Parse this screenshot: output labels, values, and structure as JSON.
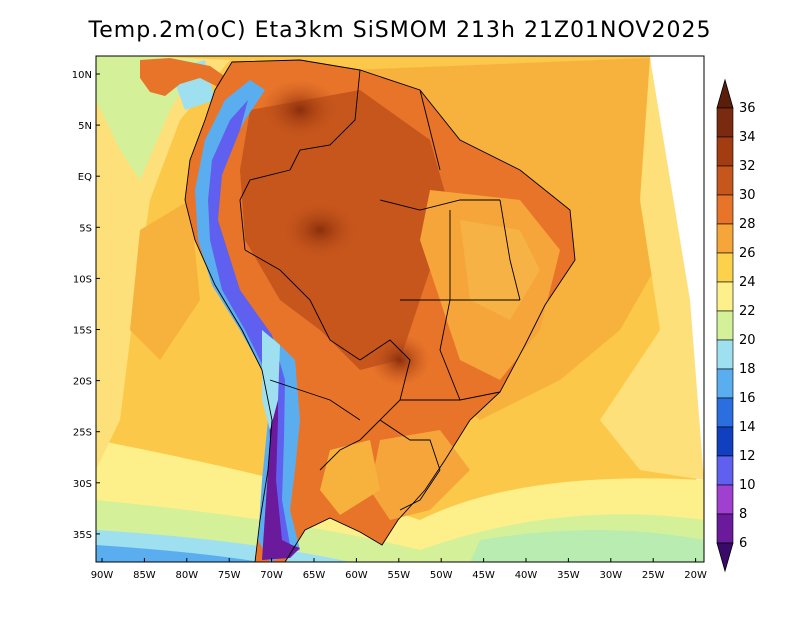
{
  "map": {
    "title": "Temp.2m(oC) Eta3km SiSMOM 213h 21Z01NOV2025",
    "lat_labels": [
      "10N",
      "5N",
      "EQ",
      "5S",
      "10S",
      "15S",
      "20S",
      "25S",
      "30S",
      "35S"
    ],
    "lon_labels": [
      "90W",
      "85W",
      "80W",
      "75W",
      "70W",
      "65W",
      "60W",
      "55W",
      "50W",
      "45W",
      "40W",
      "35W",
      "30W",
      "25W",
      "20W"
    ],
    "colorbar": {
      "labels": [
        "36",
        "34",
        "32",
        "30",
        "28",
        "26",
        "24",
        "22",
        "20",
        "18",
        "16",
        "14",
        "12",
        "10",
        "8",
        "6"
      ],
      "colors": [
        "#5a1e0a",
        "#7a2a0e",
        "#a33c10",
        "#c7561c",
        "#e8742a",
        "#f5a53a",
        "#fcd24c",
        "#fdf08a",
        "#d4f19a",
        "#9ee0f0",
        "#5aaef0",
        "#2a6ee0",
        "#1040c0",
        "#6060f0",
        "#a040d0",
        "#6a1a9a",
        "#3a0a6a"
      ],
      "unit": "oC"
    }
  }
}
